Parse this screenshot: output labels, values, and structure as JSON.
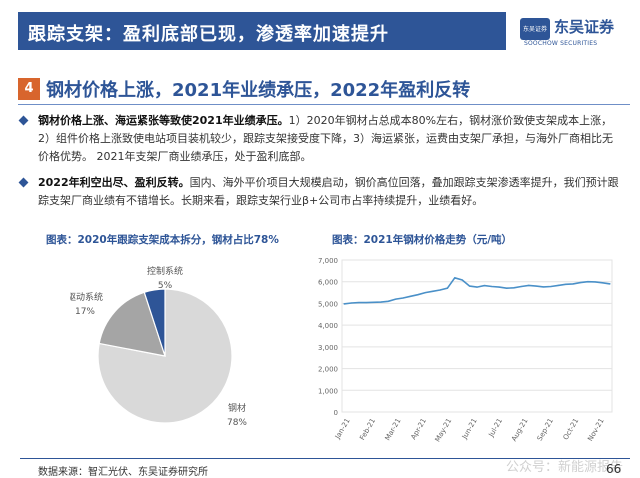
{
  "header": {
    "title": "跟踪支架：盈利底部已现，渗透率加速提升",
    "logo_mark_text": "东吴证券",
    "logo_name": "东吴证券",
    "logo_en": "SOOCHOW SECURITIES",
    "brand_color": "#2e5597"
  },
  "section": {
    "number": "4",
    "title": "钢材价格上涨，2021年业绩承压，2022年盈利反转",
    "accent_color": "#d8652d"
  },
  "bullets": [
    {
      "lead": "钢材价格上涨、海运紧张等致使2021年业绩承压。",
      "body": "1）2020年钢材占总成本80%左右，钢材涨价致使支架成本上涨，2）组件价格上涨致使电站项目装机较少，跟踪支架接受度下降，3）海运紧张，运费由支架厂承担，与海外厂商相比无价格优势。 2021年支架厂商业绩承压，处于盈利底部。"
    },
    {
      "lead": "2022年利空出尽、盈利反转。",
      "body": "国内、海外平价项目大规模启动，钢价高位回落，叠加跟踪支架渗透率提升，我们预计跟踪支架厂商业绩有不错增长。长期来看，跟踪支架行业β+公司市占率持续提升，业绩看好。"
    }
  ],
  "pie_caption": "图表：2020年跟踪支架成本拆分，钢材占比78%",
  "line_caption": "图表：2021年钢材价格走势（元/吨）",
  "chart_data": [
    {
      "type": "pie",
      "title": "2020年跟踪支架成本拆分，钢材占比78%",
      "slices": [
        {
          "label": "钢材",
          "value": 78,
          "pct": "78%",
          "color": "#d9d9d9"
        },
        {
          "label": "驱动系统",
          "value": 17,
          "pct": "17%",
          "color": "#a5a5a5"
        },
        {
          "label": "控制系统",
          "value": 5,
          "pct": "5%",
          "color": "#2e5597"
        }
      ]
    },
    {
      "type": "line",
      "title": "2021年钢材价格走势（元/吨）",
      "ylim": [
        0,
        7000
      ],
      "yticks": [
        "0",
        "1,000",
        "2,000",
        "3,000",
        "4,000",
        "5,000",
        "6,000",
        "7,000"
      ],
      "xticks": [
        "Jan-21",
        "Feb-21",
        "Mar-21",
        "Apr-21",
        "May-21",
        "Jun-21",
        "Jul-21",
        "Aug-21",
        "Sep-21",
        "Oct-21",
        "Nov-21"
      ],
      "color": "#4a90c8",
      "values": [
        4980,
        5020,
        5040,
        5040,
        5050,
        5060,
        5100,
        5200,
        5250,
        5330,
        5400,
        5500,
        5560,
        5620,
        5700,
        6180,
        6080,
        5800,
        5750,
        5820,
        5780,
        5750,
        5700,
        5720,
        5780,
        5830,
        5800,
        5760,
        5780,
        5830,
        5880,
        5900,
        5960,
        6000,
        5990,
        5950,
        5900
      ]
    }
  ],
  "footer": {
    "source": "数据来源：智汇光伏、东吴证券研究所",
    "page": "66",
    "watermark": "公众号：新能源报告"
  }
}
